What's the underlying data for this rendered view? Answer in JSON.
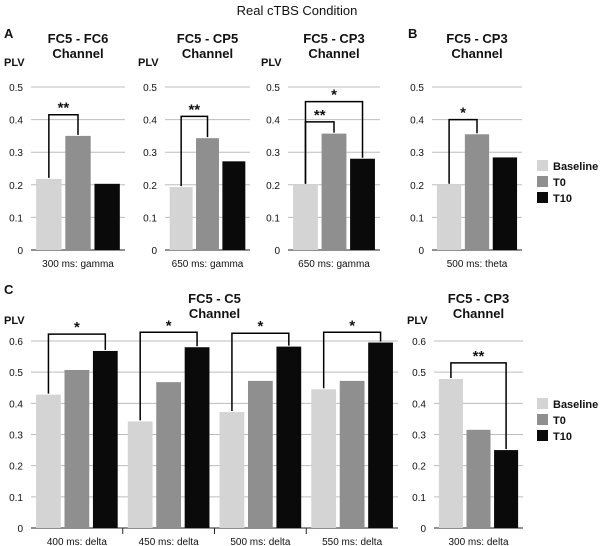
{
  "figure_title": "Real cTBS Condition",
  "colors": {
    "baseline": "#d4d4d4",
    "t0": "#8f8f8f",
    "t10": "#0a0a0a",
    "grid": "#bdbdbd",
    "axis": "#222222"
  },
  "legend_entries": [
    "Baseline",
    "T0",
    "T10"
  ],
  "chart_data": [
    {
      "type": "bar",
      "panel_letter": "A",
      "title": [
        "FC5 - FC6",
        "Channel"
      ],
      "ylabel": "PLV",
      "ylim": [
        0,
        0.5
      ],
      "yticks": [
        "0",
        "0.1",
        "0.2",
        "0.3",
        "0.4",
        "0.5"
      ],
      "groups": [
        {
          "label": "300 ms: gamma",
          "values": [
            0.218,
            0.35,
            0.203
          ]
        }
      ],
      "significance": [
        {
          "group": 0,
          "from": 0,
          "to": 1,
          "label": "**",
          "level": 0.415
        }
      ]
    },
    {
      "type": "bar",
      "panel_letter": "",
      "title": [
        "FC5 - CP5",
        "Channel"
      ],
      "ylabel": "PLV",
      "ylim": [
        0,
        0.5
      ],
      "yticks": [
        "0",
        "0.1",
        "0.2",
        "0.3",
        "0.4",
        "0.5"
      ],
      "groups": [
        {
          "label": "650 ms: gamma",
          "values": [
            0.193,
            0.343,
            0.272
          ]
        }
      ],
      "significance": [
        {
          "group": 0,
          "from": 0,
          "to": 1,
          "label": "**",
          "level": 0.41
        }
      ]
    },
    {
      "type": "bar",
      "panel_letter": "",
      "title": [
        "FC5 - CP3",
        "Channel"
      ],
      "ylabel": "PLV",
      "ylim": [
        0,
        0.5
      ],
      "yticks": [
        "0",
        "0.1",
        "0.2",
        "0.3",
        "0.4",
        "0.5"
      ],
      "groups": [
        {
          "label": "650 ms: gamma",
          "values": [
            0.2,
            0.357,
            0.28
          ]
        }
      ],
      "significance": [
        {
          "group": 0,
          "from": 0,
          "to": 1,
          "label": "**",
          "level": 0.393
        },
        {
          "group": 0,
          "from": 0,
          "to": 2,
          "label": "*",
          "level": 0.455
        }
      ]
    },
    {
      "type": "bar",
      "panel_letter": "B",
      "title": [
        "FC5 - CP3",
        "Channel"
      ],
      "ylabel": "",
      "ylim": [
        0,
        0.5
      ],
      "yticks": [
        "0",
        "0.1",
        "0.2",
        "0.3",
        "0.4",
        "0.5"
      ],
      "groups": [
        {
          "label": "500 ms: theta",
          "values": [
            0.2,
            0.355,
            0.284
          ]
        }
      ],
      "significance": [
        {
          "group": 0,
          "from": 0,
          "to": 1,
          "label": "*",
          "level": 0.4
        }
      ]
    },
    {
      "type": "bar",
      "panel_letter": "C",
      "title": [
        "FC5 - C5",
        "Channel"
      ],
      "ylabel": "PLV",
      "ylim": [
        0,
        0.6
      ],
      "yticks": [
        "0",
        "0.1",
        "0.2",
        "0.3",
        "0.4",
        "0.5",
        "0.6"
      ],
      "groups": [
        {
          "label": "400 ms: delta",
          "values": [
            0.428,
            0.507,
            0.568
          ]
        },
        {
          "label": "450 ms: delta",
          "values": [
            0.342,
            0.468,
            0.58
          ]
        },
        {
          "label": "500 ms: delta",
          "values": [
            0.372,
            0.472,
            0.582
          ]
        },
        {
          "label": "550 ms: delta",
          "values": [
            0.445,
            0.472,
            0.595
          ]
        }
      ],
      "significance": [
        {
          "group": 0,
          "from": 0,
          "to": 2,
          "label": "*",
          "level": 0.622
        },
        {
          "group": 1,
          "from": 0,
          "to": 2,
          "label": "*",
          "level": 0.628
        },
        {
          "group": 2,
          "from": 0,
          "to": 2,
          "label": "*",
          "level": 0.625
        },
        {
          "group": 3,
          "from": 0,
          "to": 2,
          "label": "*",
          "level": 0.628
        }
      ]
    },
    {
      "type": "bar",
      "panel_letter": "",
      "title": [
        "FC5 - CP3",
        "Channel"
      ],
      "ylabel": "PLV",
      "ylim": [
        0,
        0.6
      ],
      "yticks": [
        "0",
        "0.1",
        "0.2",
        "0.3",
        "0.4",
        "0.5",
        "0.6"
      ],
      "groups": [
        {
          "label": "300 ms: delta",
          "values": [
            0.478,
            0.315,
            0.25
          ]
        }
      ],
      "significance": [
        {
          "group": 0,
          "from": 0,
          "to": 2,
          "label": "**",
          "level": 0.53
        }
      ]
    }
  ]
}
